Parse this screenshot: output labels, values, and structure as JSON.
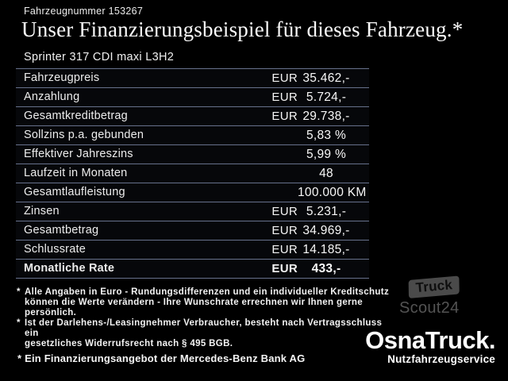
{
  "header": {
    "vehicle_number": "Fahrzeugnummer 153267",
    "title": "Unser Finanzierungsbeispiel für dieses Fahrzeug.*",
    "subtitle": "Sprinter 317 CDI maxi L3H2"
  },
  "table": {
    "rows": [
      {
        "label": "Fahrzeugpreis",
        "currency": "EUR",
        "value": "35.462,-",
        "bold": false
      },
      {
        "label": "Anzahlung",
        "currency": "EUR",
        "value": "5.724,-",
        "bold": false
      },
      {
        "label": "Gesamtkreditbetrag",
        "currency": "EUR",
        "value": "29.738,-",
        "bold": false
      },
      {
        "label": "Sollzins p.a. gebunden",
        "currency": "",
        "value": "5,83 %",
        "bold": false
      },
      {
        "label": "Effektiver Jahreszins",
        "currency": "",
        "value": "5,99 %",
        "bold": false
      },
      {
        "label": "Laufzeit in Monaten",
        "currency": "",
        "value": "48",
        "bold": false
      },
      {
        "label": "Gesamtlaufleistung",
        "currency": "",
        "value": "100.000 KM",
        "bold": false
      },
      {
        "label": "Zinsen",
        "currency": "EUR",
        "value": "5.231,-",
        "bold": false
      },
      {
        "label": "Gesamtbetrag",
        "currency": "EUR",
        "value": "34.969,-",
        "bold": false
      },
      {
        "label": "Schlussrate",
        "currency": "EUR",
        "value": "14.185,-",
        "bold": false
      },
      {
        "label": "Monatliche Rate",
        "currency": "EUR",
        "value": "433,-",
        "bold": true
      }
    ]
  },
  "footnotes": [
    {
      "marker": "*",
      "lines": [
        "Alle Angaben in Euro - Rundungsdifferenzen und ein individueller Kreditschutz",
        "können die Werte verändern - Ihre Wunschrate errechnen wir Ihnen gerne persönlich."
      ]
    },
    {
      "marker": "*",
      "lines": [
        "Ist der Darlehens-/Leasingnehmer Verbraucher, besteht nach Vertragsschluss ein",
        "gesetzliches Widerrufsrecht nach § 495 BGB."
      ]
    }
  ],
  "footer": {
    "financing_note": "* Ein Finanzierungsangebot der Mercedes-Benz Bank AG"
  },
  "logos": {
    "truckscout": {
      "badge_text": "Truck",
      "name_text": "Scout24",
      "color": "#4a4a4a"
    },
    "osnatruck": {
      "name": "OsnaTruck.",
      "tagline": "Nutzfahrzeugservice",
      "color": "#ffffff"
    }
  },
  "colors": {
    "background": "#000000",
    "text": "#f2f2f2",
    "separator": "#67718c"
  }
}
